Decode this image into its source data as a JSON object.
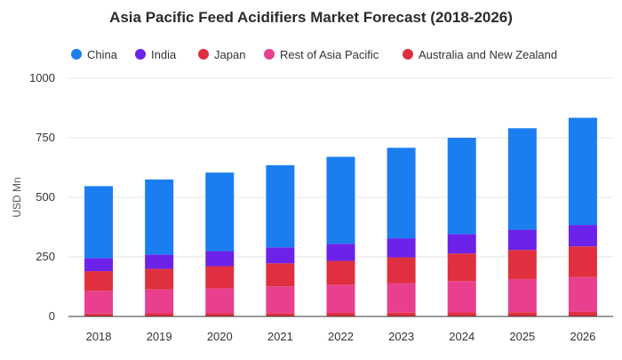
{
  "chart_data": {
    "type": "bar",
    "stacked": true,
    "title": "Asia Pacific Feed Acidifiers Market Forecast (2018-2026)",
    "xlabel": "",
    "ylabel": "USD Mn",
    "ylim": [
      0,
      1000
    ],
    "yticks": [
      "0",
      "250",
      "500",
      "750",
      "1000"
    ],
    "categories": [
      "2018",
      "2019",
      "2020",
      "2021",
      "2022",
      "2023",
      "2024",
      "2025",
      "2026"
    ],
    "legend_position": "top",
    "grid": true,
    "series": [
      {
        "name": "Australia and New Zealand",
        "color": "#e0303f",
        "values": [
          12,
          13,
          13,
          14,
          15,
          16,
          17,
          18,
          20
        ]
      },
      {
        "name": "Rest of Asia Pacific",
        "color": "#e8408e",
        "values": [
          95,
          100,
          105,
          112,
          118,
          124,
          131,
          139,
          145
        ]
      },
      {
        "name": "Japan",
        "color": "#e0303f",
        "values": [
          83,
          87,
          93,
          97,
          100,
          108,
          116,
          122,
          129
        ]
      },
      {
        "name": "India",
        "color": "#6c22e8",
        "values": [
          55,
          60,
          63,
          67,
          72,
          80,
          82,
          85,
          90
        ]
      },
      {
        "name": "China",
        "color": "#1a7ef0",
        "values": [
          302,
          315,
          330,
          345,
          365,
          380,
          404,
          426,
          450
        ]
      }
    ],
    "legend_order": [
      "China",
      "India",
      "Japan",
      "Rest of Asia Pacific",
      "Australia and New Zealand"
    ]
  }
}
